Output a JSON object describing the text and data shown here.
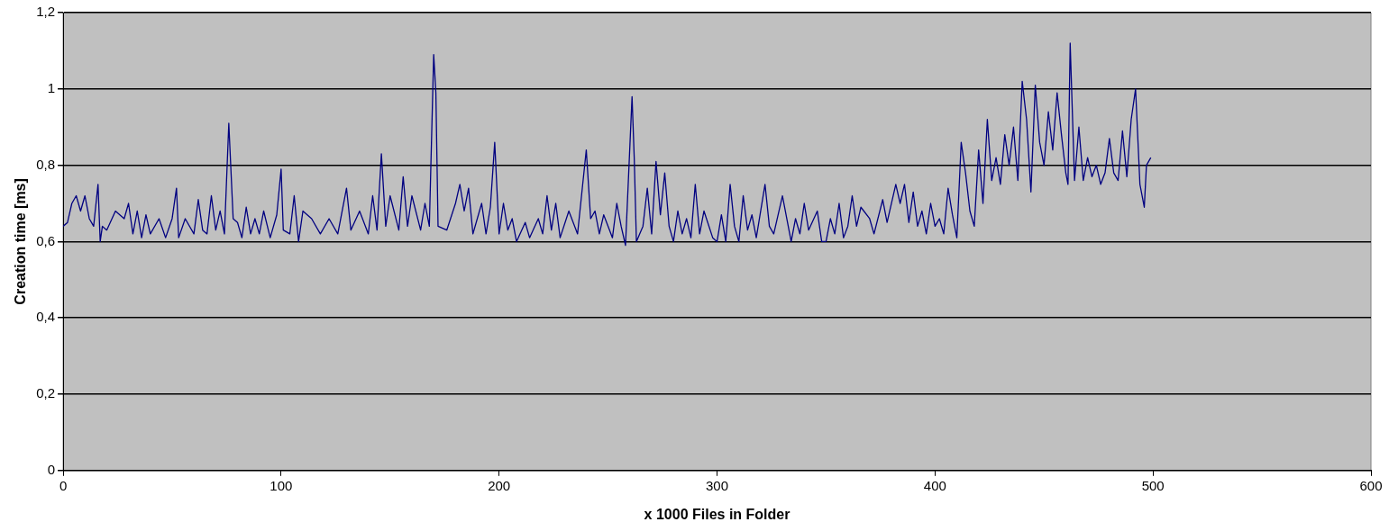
{
  "chart_data": {
    "type": "line",
    "xlabel": "x 1000 Files in Folder",
    "ylabel": "Creation time [ms]",
    "xlim": [
      0,
      600
    ],
    "xticks": [
      0,
      100,
      200,
      300,
      400,
      500,
      600
    ],
    "ylim": [
      0,
      1.2
    ],
    "yticks": [
      0,
      {
        "value": 0.2,
        "label": "0,2"
      },
      {
        "value": 0.4,
        "label": "0,4"
      },
      {
        "value": 0.6,
        "label": "0,6"
      },
      {
        "value": 0.8,
        "label": "0,8"
      },
      1,
      {
        "value": 1.2,
        "label": "1,2"
      }
    ],
    "grid": "y",
    "legend": false,
    "marker": "none",
    "line_style": "solid",
    "series": [
      {
        "color": "#000080",
        "x": [
          0,
          2,
          4,
          6,
          8,
          10,
          12,
          14,
          16,
          17,
          18,
          20,
          24,
          28,
          30,
          32,
          34,
          36,
          38,
          40,
          44,
          47,
          50,
          52,
          53,
          56,
          60,
          62,
          64,
          66,
          68,
          70,
          72,
          74,
          76,
          78,
          80,
          82,
          84,
          86,
          88,
          90,
          92,
          95,
          98,
          100,
          101,
          104,
          106,
          108,
          110,
          114,
          118,
          122,
          126,
          130,
          132,
          136,
          140,
          142,
          144,
          146,
          148,
          150,
          154,
          156,
          158,
          160,
          164,
          166,
          168,
          170,
          171,
          172,
          176,
          180,
          182,
          184,
          186,
          188,
          192,
          194,
          196,
          198,
          200,
          202,
          204,
          206,
          208,
          212,
          214,
          218,
          220,
          222,
          224,
          226,
          228,
          232,
          236,
          238,
          240,
          242,
          244,
          246,
          248,
          252,
          254,
          256,
          258,
          260,
          261,
          262,
          263,
          266,
          268,
          270,
          272,
          274,
          276,
          278,
          280,
          282,
          284,
          286,
          288,
          290,
          292,
          294,
          298,
          300,
          302,
          304,
          306,
          308,
          310,
          312,
          314,
          316,
          318,
          322,
          324,
          326,
          330,
          334,
          336,
          338,
          340,
          342,
          346,
          348,
          350,
          352,
          354,
          356,
          358,
          360,
          362,
          364,
          366,
          370,
          372,
          376,
          378,
          382,
          384,
          386,
          388,
          390,
          392,
          394,
          396,
          398,
          400,
          402,
          404,
          406,
          408,
          410,
          412,
          414,
          416,
          418,
          420,
          422,
          424,
          426,
          428,
          430,
          432,
          434,
          436,
          438,
          440,
          442,
          444,
          446,
          448,
          450,
          452,
          454,
          456,
          458,
          460,
          461,
          462,
          464,
          466,
          468,
          470,
          472,
          474,
          476,
          478,
          480,
          482,
          484,
          486,
          488,
          490,
          492,
          494,
          496,
          497,
          499
        ],
        "values": [
          0.64,
          0.65,
          0.7,
          0.72,
          0.68,
          0.72,
          0.66,
          0.64,
          0.75,
          0.6,
          0.64,
          0.63,
          0.68,
          0.66,
          0.7,
          0.62,
          0.68,
          0.61,
          0.67,
          0.62,
          0.66,
          0.61,
          0.66,
          0.74,
          0.61,
          0.66,
          0.62,
          0.71,
          0.63,
          0.62,
          0.72,
          0.63,
          0.68,
          0.62,
          0.91,
          0.66,
          0.65,
          0.61,
          0.69,
          0.62,
          0.66,
          0.62,
          0.68,
          0.61,
          0.67,
          0.79,
          0.63,
          0.62,
          0.72,
          0.6,
          0.68,
          0.66,
          0.62,
          0.66,
          0.62,
          0.74,
          0.63,
          0.68,
          0.62,
          0.72,
          0.63,
          0.83,
          0.64,
          0.72,
          0.63,
          0.77,
          0.64,
          0.72,
          0.63,
          0.7,
          0.64,
          1.09,
          0.99,
          0.64,
          0.63,
          0.7,
          0.75,
          0.68,
          0.74,
          0.62,
          0.7,
          0.62,
          0.69,
          0.86,
          0.62,
          0.7,
          0.63,
          0.66,
          0.6,
          0.65,
          0.61,
          0.66,
          0.62,
          0.72,
          0.63,
          0.7,
          0.61,
          0.68,
          0.62,
          0.73,
          0.84,
          0.66,
          0.68,
          0.62,
          0.67,
          0.61,
          0.7,
          0.64,
          0.59,
          0.85,
          0.98,
          0.82,
          0.6,
          0.64,
          0.74,
          0.62,
          0.81,
          0.67,
          0.78,
          0.64,
          0.6,
          0.68,
          0.62,
          0.66,
          0.61,
          0.75,
          0.62,
          0.68,
          0.61,
          0.6,
          0.67,
          0.6,
          0.75,
          0.64,
          0.6,
          0.72,
          0.63,
          0.67,
          0.61,
          0.75,
          0.64,
          0.62,
          0.72,
          0.6,
          0.66,
          0.62,
          0.7,
          0.63,
          0.68,
          0.6,
          0.6,
          0.66,
          0.62,
          0.7,
          0.61,
          0.64,
          0.72,
          0.64,
          0.69,
          0.66,
          0.62,
          0.71,
          0.65,
          0.75,
          0.7,
          0.75,
          0.65,
          0.73,
          0.64,
          0.68,
          0.62,
          0.7,
          0.64,
          0.66,
          0.62,
          0.74,
          0.67,
          0.61,
          0.86,
          0.78,
          0.68,
          0.64,
          0.84,
          0.7,
          0.92,
          0.76,
          0.82,
          0.75,
          0.88,
          0.8,
          0.9,
          0.76,
          1.02,
          0.92,
          0.73,
          1.01,
          0.86,
          0.8,
          0.94,
          0.84,
          0.99,
          0.88,
          0.78,
          0.75,
          1.12,
          0.76,
          0.9,
          0.76,
          0.82,
          0.77,
          0.8,
          0.75,
          0.78,
          0.87,
          0.78,
          0.76,
          0.89,
          0.77,
          0.92,
          1.0,
          0.75,
          0.69,
          0.8,
          0.82
        ]
      }
    ]
  }
}
